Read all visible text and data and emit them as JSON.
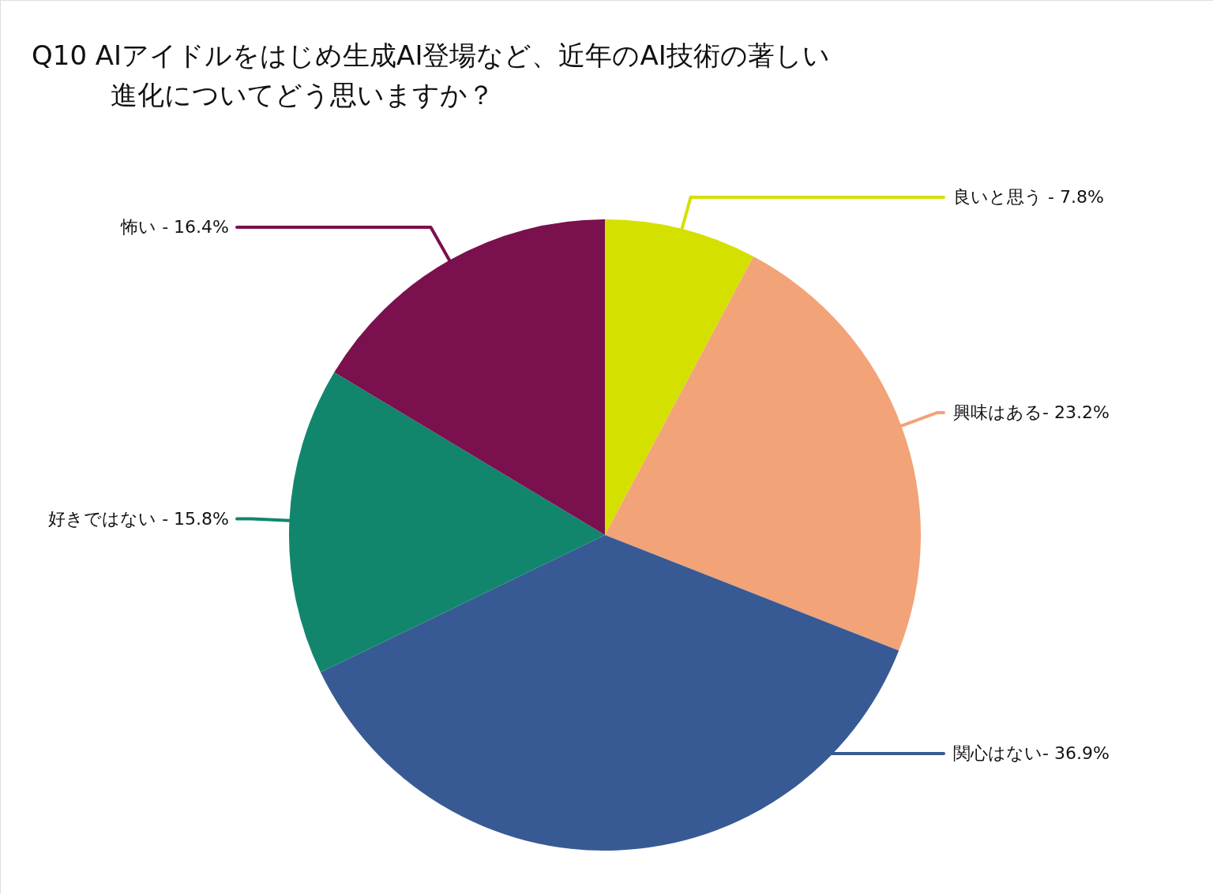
{
  "chart_data": {
    "type": "pie",
    "title": "Q10 AIアイドルをはじめ生成AI登場など、近年のAI技術の著しい",
    "subtitle": "進化についてどう思いますか？",
    "categories": [
      "良いと思う - 7.8%",
      "興味はある- 23.2%",
      "関心はない- 36.9%",
      "好きではない - 15.8%",
      "怖い - 16.4%"
    ],
    "values": [
      7.8,
      23.2,
      36.9,
      15.8,
      16.4
    ],
    "colors": [
      "#d4e100",
      "#f2a377",
      "#385a94",
      "#11866c",
      "#7b104f"
    ]
  }
}
